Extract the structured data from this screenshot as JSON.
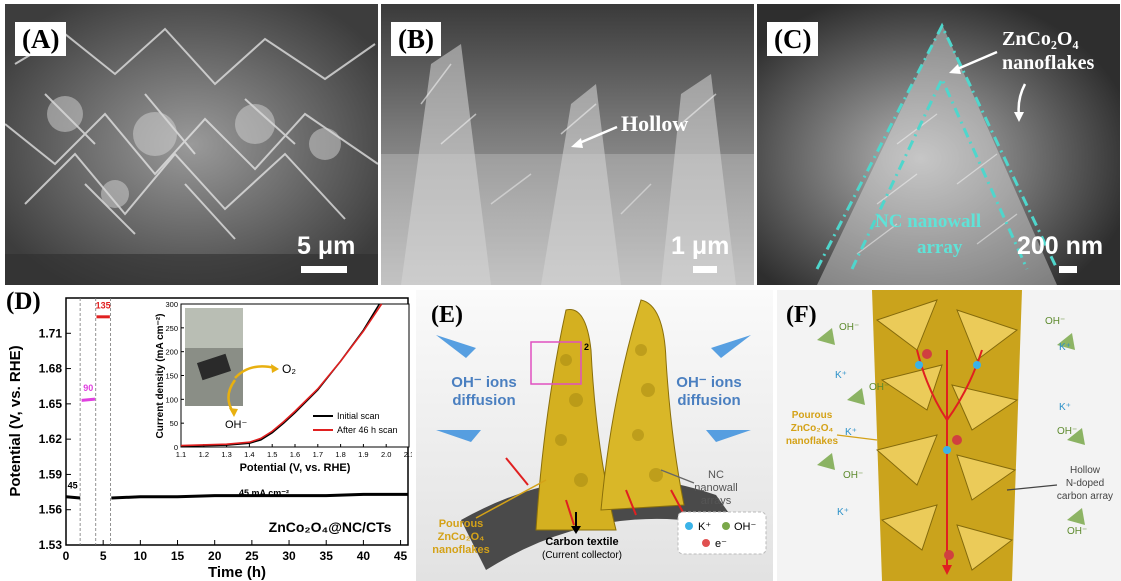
{
  "panels": {
    "A": {
      "label": "(A)",
      "scale": "5 μm"
    },
    "B": {
      "label": "(B)",
      "scale": "1 μm",
      "annotation": "Hollow"
    },
    "C": {
      "label": "(C)",
      "scale": "200 nm",
      "annotation_line1": "ZnCo₂O₄",
      "annotation_line2": "nanoflakes",
      "array_line1": "NC nanowall",
      "array_line2": "array"
    },
    "D": {
      "label": "(D)",
      "footer": "ZnCo₂O₄@NC/CTs",
      "current_label": "45 mA cm⁻²",
      "inset": {
        "o2": "O₂",
        "oh": "OH⁻",
        "legend_initial": "Initial scan",
        "legend_after": "After 46 h scan"
      }
    },
    "E": {
      "label": "(E)",
      "left_ions": "OH⁻ ions",
      "left_diffusion": "diffusion",
      "right_ions": "OH⁻ ions",
      "right_diffusion": "diffusion",
      "nc_1": "NC",
      "nc_2": "nanowall",
      "nc_3": "arrays",
      "pourous_1": "Pourous",
      "pourous_2": "ZnCo₂O₄",
      "pourous_3": "nanoflakes",
      "carbon_1": "Carbon textile",
      "carbon_2": "(Current collector)",
      "legend_k": "K⁺",
      "legend_oh": "OH⁻",
      "legend_e": "e⁻",
      "box_num": "2"
    },
    "F": {
      "label": "(F)",
      "pourous_1": "Pourous",
      "pourous_2": "ZnCo₂O₄",
      "pourous_3": "nanoflakes",
      "hollow_1": "Hollow",
      "hollow_2": "N-doped",
      "hollow_3": "carbon array",
      "oh": "OH⁻",
      "k": "K⁺"
    }
  },
  "chart_data": [
    {
      "type": "line",
      "xlabel": "Time (h)",
      "ylabel": "Potential (V, vs. RHE)",
      "xlim": [
        0,
        46
      ],
      "ylim": [
        1.53,
        1.74
      ],
      "xticks": [
        0,
        5,
        10,
        15,
        20,
        25,
        30,
        35,
        40,
        45
      ],
      "yticks": [
        1.53,
        1.56,
        1.59,
        1.62,
        1.65,
        1.68,
        1.71
      ],
      "ytick_labels": [
        "1.53",
        "1.56",
        "1.59",
        "1.62",
        "1.65",
        "1.68",
        "1.71"
      ],
      "segment_labels": [
        "45",
        "90",
        "135"
      ],
      "segments": [
        {
          "name": "45",
          "x": [
            0,
            1.9
          ],
          "y": [
            1.571,
            1.57
          ],
          "color": "#000000"
        },
        {
          "name": "90",
          "x": [
            2.1,
            3.9
          ],
          "y": [
            1.653,
            1.654
          ],
          "color": "#e040e0"
        },
        {
          "name": "135",
          "x": [
            4.1,
            5.9
          ],
          "y": [
            1.724,
            1.724
          ],
          "color": "#e02020"
        },
        {
          "name": "45",
          "x": [
            6.1,
            10,
            15,
            20,
            25,
            30,
            35,
            40,
            46
          ],
          "y": [
            1.57,
            1.571,
            1.571,
            1.572,
            1.572,
            1.572,
            1.572,
            1.573,
            1.573
          ],
          "color": "#000000"
        }
      ],
      "vlines": [
        1.9,
        4.0,
        6.0
      ]
    },
    {
      "type": "line",
      "xlabel": "Potential (V, vs. RHE)",
      "ylabel": "Current density (mA cm⁻²)",
      "xlim": [
        1.1,
        2.1
      ],
      "ylim": [
        0,
        300
      ],
      "xticks": [
        1.1,
        1.2,
        1.3,
        1.4,
        1.5,
        1.6,
        1.7,
        1.8,
        1.9,
        2.0,
        2.1
      ],
      "xtick_labels": [
        "1.1",
        "1.2",
        "1.3",
        "1.4",
        "1.5",
        "1.6",
        "1.7",
        "1.8",
        "1.9",
        "2.0",
        "2.1"
      ],
      "yticks": [
        0,
        50,
        100,
        150,
        200,
        250,
        300
      ],
      "series": [
        {
          "name": "Initial scan",
          "color": "#000000",
          "x": [
            1.1,
            1.3,
            1.4,
            1.45,
            1.5,
            1.55,
            1.6,
            1.7,
            1.8,
            1.9,
            1.97
          ],
          "y": [
            2,
            4,
            8,
            15,
            30,
            50,
            72,
            120,
            180,
            245,
            300
          ]
        },
        {
          "name": "After 46 h scan",
          "color": "#e02020",
          "x": [
            1.1,
            1.3,
            1.4,
            1.45,
            1.5,
            1.55,
            1.6,
            1.7,
            1.8,
            1.9,
            1.98
          ],
          "y": [
            3,
            6,
            10,
            18,
            33,
            53,
            75,
            122,
            180,
            243,
            300
          ]
        }
      ]
    }
  ]
}
